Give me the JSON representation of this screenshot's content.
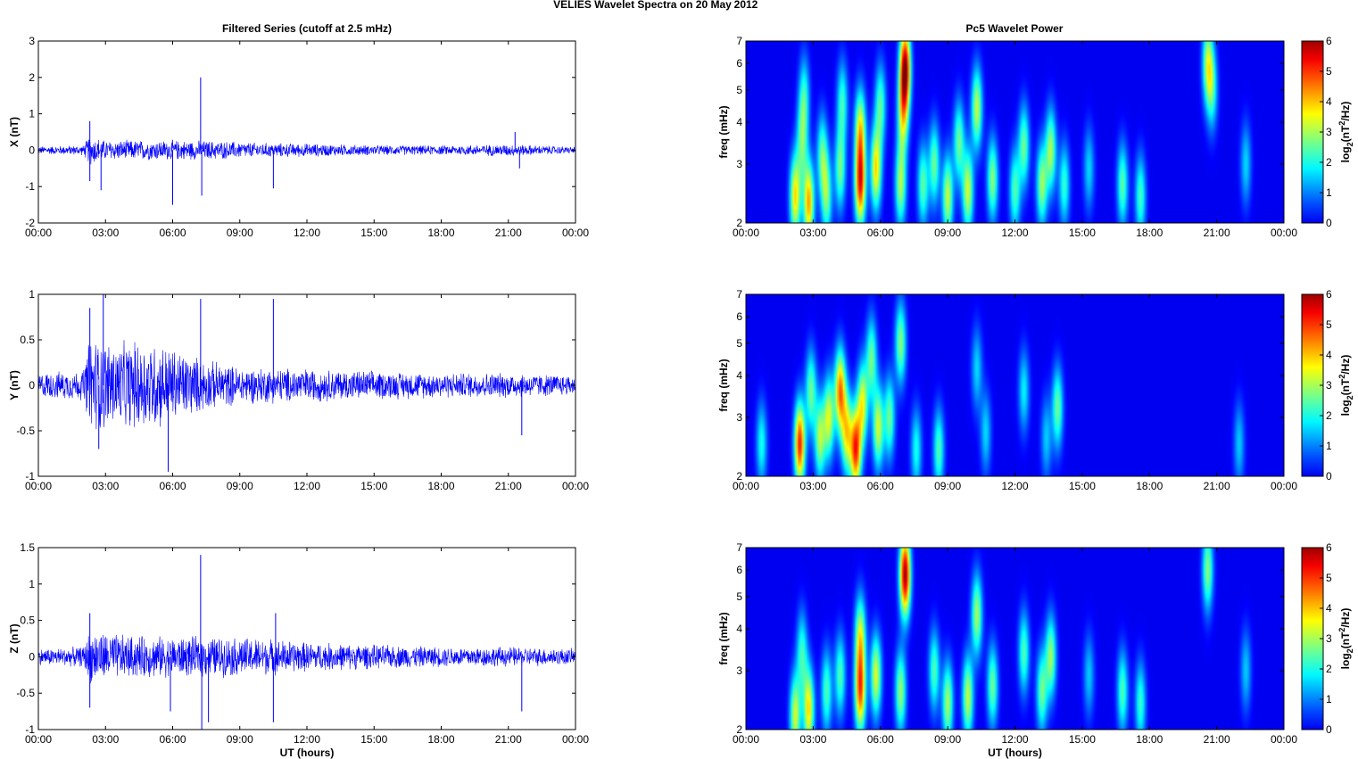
{
  "figure": {
    "suptitle_left": "VELIES Wavelet Spectra on 20 May",
    "suptitle_right": "2012",
    "left_title": "Filtered Series (cutoff at 2.5 mHz)",
    "right_title": "Pc5 Wavelet Power",
    "xlabel": "UT (hours)",
    "freq_label": "freq (mHz)",
    "colorbar_label": "log2(nT^2/Hz)",
    "colorbar_label_parts": {
      "pre": "log",
      "sub": "2",
      "mid": "(nT",
      "sup": "2",
      "post": "/Hz)"
    },
    "trace_color": "#0000ff"
  },
  "chart_data": [
    {
      "type": "line",
      "id": "x-series",
      "ylabel": "X (nT)",
      "xlim": [
        0,
        24
      ],
      "ylim": [
        -2,
        3
      ],
      "xticks": [
        "00:00",
        "03:00",
        "06:00",
        "09:00",
        "12:00",
        "15:00",
        "18:00",
        "21:00",
        "00:00"
      ],
      "yticks": [
        -2,
        -1,
        0,
        1,
        2,
        3
      ],
      "noise_amplitude": [
        [
          0,
          0.12
        ],
        [
          2,
          0.15
        ],
        [
          2.3,
          0.45
        ],
        [
          3,
          0.3
        ],
        [
          4,
          0.3
        ],
        [
          6,
          0.3
        ],
        [
          8,
          0.28
        ],
        [
          10,
          0.22
        ],
        [
          12,
          0.2
        ],
        [
          15,
          0.15
        ],
        [
          18,
          0.14
        ],
        [
          21,
          0.18
        ],
        [
          24,
          0.1
        ]
      ],
      "spikes": [
        [
          2.3,
          0.8
        ],
        [
          2.3,
          -0.85
        ],
        [
          2.8,
          -1.1
        ],
        [
          6,
          -1.5
        ],
        [
          7.25,
          2.0
        ],
        [
          7.3,
          -1.25
        ],
        [
          10.5,
          -1.05
        ],
        [
          21.3,
          0.5
        ],
        [
          21.5,
          -0.5
        ]
      ]
    },
    {
      "type": "line",
      "id": "y-series",
      "ylabel": "Y (nT)",
      "xlim": [
        0,
        24
      ],
      "ylim": [
        -1,
        1
      ],
      "xticks": [
        "00:00",
        "03:00",
        "06:00",
        "09:00",
        "12:00",
        "15:00",
        "18:00",
        "21:00",
        "00:00"
      ],
      "yticks": [
        -1,
        -0.5,
        0,
        0.5,
        1
      ],
      "noise_amplitude": [
        [
          0,
          0.15
        ],
        [
          2,
          0.18
        ],
        [
          2.3,
          0.6
        ],
        [
          3.5,
          0.5
        ],
        [
          5,
          0.55
        ],
        [
          6,
          0.45
        ],
        [
          7.5,
          0.3
        ],
        [
          9,
          0.22
        ],
        [
          12,
          0.2
        ],
        [
          15,
          0.17
        ],
        [
          18,
          0.15
        ],
        [
          21,
          0.15
        ],
        [
          24,
          0.12
        ]
      ],
      "spikes": [
        [
          2.3,
          0.85
        ],
        [
          2.7,
          -0.7
        ],
        [
          2.9,
          1.0
        ],
        [
          5.8,
          -0.95
        ],
        [
          7.25,
          0.95
        ],
        [
          10.5,
          0.95
        ],
        [
          21.6,
          -0.55
        ]
      ]
    },
    {
      "type": "line",
      "id": "z-series",
      "ylabel": "Z (nT)",
      "xlim": [
        0,
        24
      ],
      "ylim": [
        -1,
        1.5
      ],
      "xticks": [
        "00:00",
        "03:00",
        "06:00",
        "09:00",
        "12:00",
        "15:00",
        "18:00",
        "21:00",
        "00:00"
      ],
      "yticks": [
        -1,
        -0.5,
        0,
        0.5,
        1,
        1.5
      ],
      "noise_amplitude": [
        [
          0,
          0.12
        ],
        [
          2,
          0.15
        ],
        [
          2.3,
          0.4
        ],
        [
          4,
          0.32
        ],
        [
          6,
          0.3
        ],
        [
          8,
          0.3
        ],
        [
          10,
          0.28
        ],
        [
          12,
          0.22
        ],
        [
          15,
          0.18
        ],
        [
          18,
          0.15
        ],
        [
          21,
          0.15
        ],
        [
          24,
          0.12
        ]
      ],
      "spikes": [
        [
          2.3,
          0.6
        ],
        [
          2.3,
          -0.7
        ],
        [
          5.9,
          -0.75
        ],
        [
          7.25,
          1.4
        ],
        [
          7.3,
          -1.0
        ],
        [
          7.6,
          -0.9
        ],
        [
          10.5,
          -0.9
        ],
        [
          10.6,
          0.6
        ],
        [
          21.6,
          -0.75
        ]
      ]
    },
    {
      "type": "heatmap",
      "id": "x-power",
      "ylabel": "freq (mHz)",
      "xlim": [
        0,
        24
      ],
      "ylim": [
        2,
        7
      ],
      "yscale": "log",
      "xticks": [
        "00:00",
        "03:00",
        "06:00",
        "09:00",
        "12:00",
        "15:00",
        "18:00",
        "21:00",
        "00:00"
      ],
      "yticks": [
        2,
        3,
        4,
        5,
        6,
        7
      ],
      "clim": [
        0,
        6
      ],
      "colorbar_ticks": [
        0,
        1,
        2,
        3,
        4,
        5,
        6
      ],
      "colormap": "jet",
      "blobs": [
        [
          2.2,
          2.4,
          3.8
        ],
        [
          2.5,
          3.5,
          2.2
        ],
        [
          2.8,
          2.3,
          4.2
        ],
        [
          2.6,
          4.8,
          2.0
        ],
        [
          3.6,
          2.4,
          2.6
        ],
        [
          3.4,
          3.2,
          2.4
        ],
        [
          4.2,
          2.9,
          2.6
        ],
        [
          4.3,
          4.6,
          2.2
        ],
        [
          5.1,
          2.6,
          5.0
        ],
        [
          5.1,
          3.8,
          3.5
        ],
        [
          5.8,
          2.9,
          3.8
        ],
        [
          6.0,
          4.5,
          2.4
        ],
        [
          6.9,
          2.6,
          3.0
        ],
        [
          7.0,
          4.2,
          3.0
        ],
        [
          7.1,
          5.8,
          6.0
        ],
        [
          7.9,
          2.6,
          2.5
        ],
        [
          8.4,
          3.0,
          2.6
        ],
        [
          9.0,
          2.4,
          3.2
        ],
        [
          9.5,
          3.5,
          2.6
        ],
        [
          9.9,
          2.5,
          3.3
        ],
        [
          10.3,
          4.4,
          3.2
        ],
        [
          11.0,
          2.7,
          2.8
        ],
        [
          12.0,
          2.5,
          2.4
        ],
        [
          12.4,
          3.4,
          2.6
        ],
        [
          13.2,
          2.6,
          2.9
        ],
        [
          13.6,
          3.3,
          3.0
        ],
        [
          14.2,
          2.6,
          2.2
        ],
        [
          15.3,
          2.9,
          1.6
        ],
        [
          16.8,
          2.6,
          2.5
        ],
        [
          17.6,
          2.4,
          2.3
        ],
        [
          20.6,
          6.0,
          3.0
        ],
        [
          20.8,
          5.0,
          2.0
        ],
        [
          22.3,
          3.0,
          1.6
        ]
      ]
    },
    {
      "type": "heatmap",
      "id": "y-power",
      "ylabel": "freq (mHz)",
      "xlim": [
        0,
        24
      ],
      "ylim": [
        2,
        7
      ],
      "yscale": "log",
      "xticks": [
        "00:00",
        "03:00",
        "06:00",
        "09:00",
        "12:00",
        "15:00",
        "18:00",
        "21:00",
        "00:00"
      ],
      "yticks": [
        2,
        3,
        4,
        5,
        6,
        7
      ],
      "clim": [
        0,
        6
      ],
      "colorbar_ticks": [
        0,
        1,
        2,
        3,
        4,
        5,
        6
      ],
      "colormap": "jet",
      "blobs": [
        [
          0.7,
          2.5,
          2.0
        ],
        [
          2.4,
          2.5,
          5.2
        ],
        [
          2.9,
          3.6,
          2.6
        ],
        [
          3.3,
          2.6,
          3.0
        ],
        [
          3.7,
          3.0,
          3.3
        ],
        [
          4.2,
          3.6,
          4.5
        ],
        [
          4.5,
          2.7,
          3.5
        ],
        [
          4.9,
          2.4,
          5.0
        ],
        [
          5.2,
          3.3,
          3.4
        ],
        [
          5.6,
          4.5,
          2.6
        ],
        [
          5.9,
          2.8,
          3.3
        ],
        [
          6.4,
          3.0,
          2.6
        ],
        [
          6.9,
          5.0,
          2.8
        ],
        [
          7.6,
          2.4,
          2.0
        ],
        [
          8.6,
          2.4,
          2.4
        ],
        [
          10.3,
          4.2,
          1.6
        ],
        [
          10.7,
          2.7,
          1.6
        ],
        [
          12.4,
          3.6,
          1.8
        ],
        [
          13.4,
          2.6,
          1.5
        ],
        [
          13.9,
          3.2,
          2.6
        ],
        [
          22.0,
          2.5,
          1.5
        ]
      ]
    },
    {
      "type": "heatmap",
      "id": "z-power",
      "ylabel": "freq (mHz)",
      "xlim": [
        0,
        24
      ],
      "ylim": [
        2,
        7
      ],
      "yscale": "log",
      "xticks": [
        "00:00",
        "03:00",
        "06:00",
        "09:00",
        "12:00",
        "15:00",
        "18:00",
        "21:00",
        "00:00"
      ],
      "yticks": [
        2,
        3,
        4,
        5,
        6,
        7
      ],
      "clim": [
        0,
        6
      ],
      "colorbar_ticks": [
        0,
        1,
        2,
        3,
        4,
        5,
        6
      ],
      "colormap": "jet",
      "blobs": [
        [
          2.2,
          2.2,
          3.3
        ],
        [
          2.5,
          3.4,
          2.2
        ],
        [
          2.8,
          2.3,
          3.8
        ],
        [
          3.6,
          2.6,
          2.4
        ],
        [
          4.2,
          2.9,
          2.4
        ],
        [
          5.1,
          2.6,
          4.6
        ],
        [
          5.1,
          3.8,
          3.2
        ],
        [
          5.8,
          2.9,
          3.4
        ],
        [
          6.9,
          2.6,
          2.9
        ],
        [
          7.1,
          5.8,
          6.0
        ],
        [
          8.4,
          3.0,
          2.4
        ],
        [
          9.0,
          2.4,
          3.0
        ],
        [
          9.9,
          2.5,
          3.2
        ],
        [
          10.3,
          4.4,
          3.0
        ],
        [
          11.0,
          2.7,
          2.6
        ],
        [
          12.4,
          3.4,
          2.4
        ],
        [
          13.2,
          2.6,
          2.6
        ],
        [
          13.6,
          3.3,
          2.9
        ],
        [
          15.3,
          2.9,
          1.5
        ],
        [
          16.8,
          2.6,
          2.4
        ],
        [
          17.6,
          2.4,
          2.2
        ],
        [
          20.6,
          6.0,
          2.8
        ],
        [
          22.3,
          3.0,
          1.5
        ]
      ]
    }
  ]
}
